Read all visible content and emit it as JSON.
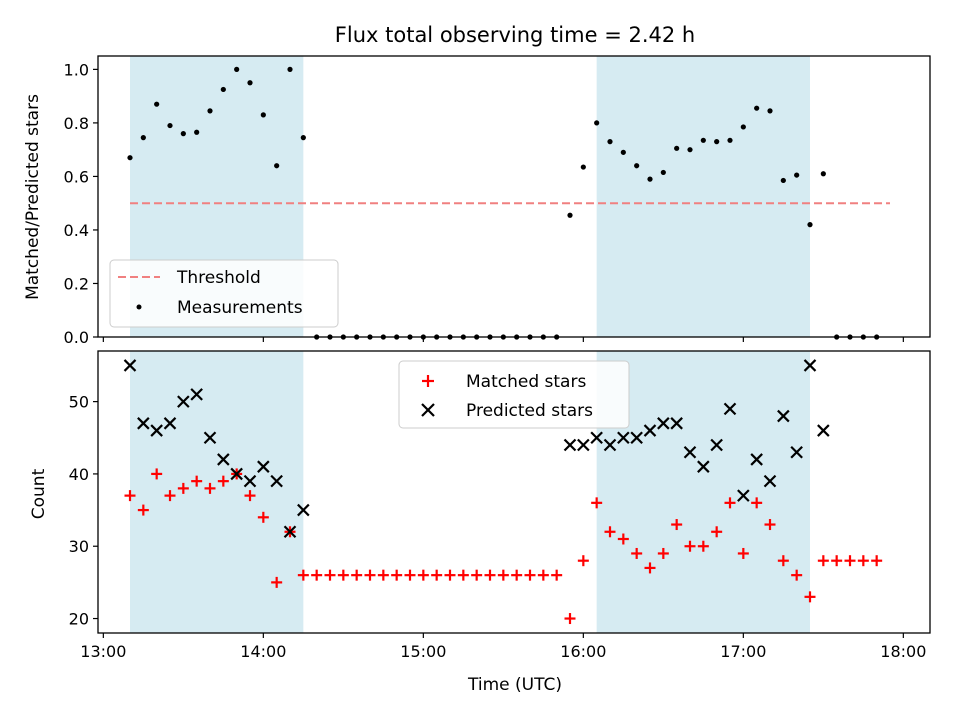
{
  "chart_data": [
    {
      "type": "scatter",
      "title": "Flux total observing time = 2.42 h",
      "xlabel": "",
      "ylabel": "Matched/Predicted stars",
      "xlim": [
        "12:58",
        "18:10"
      ],
      "ylim": [
        0,
        1.05
      ],
      "xticks": [
        "13:00",
        "14:00",
        "15:00",
        "16:00",
        "17:00",
        "18:00"
      ],
      "yticks": [
        "0.0",
        "0.2",
        "0.4",
        "0.6",
        "0.8",
        "1.0"
      ],
      "grid": false,
      "legend": "lower-left",
      "shaded_intervals": [
        [
          "13:10",
          "14:15"
        ],
        [
          "16:05",
          "17:25"
        ]
      ],
      "series": [
        {
          "name": "Threshold",
          "style": "dashed-line",
          "color": "#f08080",
          "points": [
            [
              "13:10",
              0.5
            ],
            [
              "17:55",
              0.5
            ]
          ]
        },
        {
          "name": "Measurements",
          "style": "dot",
          "color": "#000000",
          "points": [
            [
              "13:10",
              0.67
            ],
            [
              "13:15",
              0.745
            ],
            [
              "13:20",
              0.87
            ],
            [
              "13:25",
              0.79
            ],
            [
              "13:30",
              0.76
            ],
            [
              "13:35",
              0.765
            ],
            [
              "13:40",
              0.845
            ],
            [
              "13:45",
              0.925
            ],
            [
              "13:50",
              1.0
            ],
            [
              "13:55",
              0.95
            ],
            [
              "14:00",
              0.83
            ],
            [
              "14:05",
              0.64
            ],
            [
              "14:10",
              1.0
            ],
            [
              "14:15",
              0.745
            ],
            [
              "14:20",
              0.0
            ],
            [
              "14:25",
              0.0
            ],
            [
              "14:30",
              0.0
            ],
            [
              "14:35",
              0.0
            ],
            [
              "14:40",
              0.0
            ],
            [
              "14:45",
              0.0
            ],
            [
              "14:50",
              0.0
            ],
            [
              "14:55",
              0.0
            ],
            [
              "15:00",
              0.0
            ],
            [
              "15:05",
              0.0
            ],
            [
              "15:10",
              0.0
            ],
            [
              "15:15",
              0.0
            ],
            [
              "15:20",
              0.0
            ],
            [
              "15:25",
              0.0
            ],
            [
              "15:30",
              0.0
            ],
            [
              "15:35",
              0.0
            ],
            [
              "15:40",
              0.0
            ],
            [
              "15:45",
              0.0
            ],
            [
              "15:50",
              0.0
            ],
            [
              "15:55",
              0.455
            ],
            [
              "16:00",
              0.635
            ],
            [
              "16:05",
              0.8
            ],
            [
              "16:10",
              0.73
            ],
            [
              "16:15",
              0.69
            ],
            [
              "16:20",
              0.64
            ],
            [
              "16:25",
              0.59
            ],
            [
              "16:30",
              0.615
            ],
            [
              "16:35",
              0.705
            ],
            [
              "16:40",
              0.7
            ],
            [
              "16:45",
              0.735
            ],
            [
              "16:50",
              0.73
            ],
            [
              "16:55",
              0.735
            ],
            [
              "17:00",
              0.785
            ],
            [
              "17:05",
              0.855
            ],
            [
              "17:10",
              0.845
            ],
            [
              "17:15",
              0.585
            ],
            [
              "17:20",
              0.605
            ],
            [
              "17:25",
              0.42
            ],
            [
              "17:30",
              0.61
            ],
            [
              "17:35",
              0.0
            ],
            [
              "17:40",
              0.0
            ],
            [
              "17:45",
              0.0
            ],
            [
              "17:50",
              0.0
            ]
          ]
        }
      ]
    },
    {
      "type": "scatter",
      "title": "",
      "xlabel": "Time (UTC)",
      "ylabel": "Count",
      "xlim": [
        "12:58",
        "18:10"
      ],
      "ylim": [
        18,
        57
      ],
      "xticks": [
        "13:00",
        "14:00",
        "15:00",
        "16:00",
        "17:00",
        "18:00"
      ],
      "yticks": [
        "20",
        "30",
        "40",
        "50"
      ],
      "grid": false,
      "legend": "top-center",
      "shaded_intervals": [
        [
          "13:10",
          "14:15"
        ],
        [
          "16:05",
          "17:25"
        ]
      ],
      "series": [
        {
          "name": "Matched stars",
          "style": "plus",
          "color": "#ff0000",
          "points": [
            [
              "13:10",
              37
            ],
            [
              "13:15",
              35
            ],
            [
              "13:20",
              40
            ],
            [
              "13:25",
              37
            ],
            [
              "13:30",
              38
            ],
            [
              "13:35",
              39
            ],
            [
              "13:40",
              38
            ],
            [
              "13:45",
              39
            ],
            [
              "13:50",
              40
            ],
            [
              "13:55",
              37
            ],
            [
              "14:00",
              34
            ],
            [
              "14:05",
              25
            ],
            [
              "14:10",
              32
            ],
            [
              "14:15",
              26
            ],
            [
              "14:20",
              26
            ],
            [
              "14:25",
              26
            ],
            [
              "14:30",
              26
            ],
            [
              "14:35",
              26
            ],
            [
              "14:40",
              26
            ],
            [
              "14:45",
              26
            ],
            [
              "14:50",
              26
            ],
            [
              "14:55",
              26
            ],
            [
              "15:00",
              26
            ],
            [
              "15:05",
              26
            ],
            [
              "15:10",
              26
            ],
            [
              "15:15",
              26
            ],
            [
              "15:20",
              26
            ],
            [
              "15:25",
              26
            ],
            [
              "15:30",
              26
            ],
            [
              "15:35",
              26
            ],
            [
              "15:40",
              26
            ],
            [
              "15:45",
              26
            ],
            [
              "15:50",
              26
            ],
            [
              "15:55",
              20
            ],
            [
              "16:00",
              28
            ],
            [
              "16:05",
              36
            ],
            [
              "16:10",
              32
            ],
            [
              "16:15",
              31
            ],
            [
              "16:20",
              29
            ],
            [
              "16:25",
              27
            ],
            [
              "16:30",
              29
            ],
            [
              "16:35",
              33
            ],
            [
              "16:40",
              30
            ],
            [
              "16:45",
              30
            ],
            [
              "16:50",
              32
            ],
            [
              "16:55",
              36
            ],
            [
              "17:00",
              29
            ],
            [
              "17:05",
              36
            ],
            [
              "17:10",
              33
            ],
            [
              "17:15",
              28
            ],
            [
              "17:20",
              26
            ],
            [
              "17:25",
              23
            ],
            [
              "17:30",
              28
            ],
            [
              "17:35",
              28
            ],
            [
              "17:40",
              28
            ],
            [
              "17:45",
              28
            ],
            [
              "17:50",
              28
            ]
          ]
        },
        {
          "name": "Predicted stars",
          "style": "x",
          "color": "#000000",
          "points": [
            [
              "13:10",
              55
            ],
            [
              "13:15",
              47
            ],
            [
              "13:20",
              46
            ],
            [
              "13:25",
              47
            ],
            [
              "13:30",
              50
            ],
            [
              "13:35",
              51
            ],
            [
              "13:40",
              45
            ],
            [
              "13:45",
              42
            ],
            [
              "13:50",
              40
            ],
            [
              "13:55",
              39
            ],
            [
              "14:00",
              41
            ],
            [
              "14:05",
              39
            ],
            [
              "14:10",
              32
            ],
            [
              "14:15",
              35
            ],
            [
              "15:55",
              44
            ],
            [
              "16:00",
              44
            ],
            [
              "16:05",
              45
            ],
            [
              "16:10",
              44
            ],
            [
              "16:15",
              45
            ],
            [
              "16:20",
              45
            ],
            [
              "16:25",
              46
            ],
            [
              "16:30",
              47
            ],
            [
              "16:35",
              47
            ],
            [
              "16:40",
              43
            ],
            [
              "16:45",
              41
            ],
            [
              "16:50",
              44
            ],
            [
              "16:55",
              49
            ],
            [
              "17:00",
              37
            ],
            [
              "17:05",
              42
            ],
            [
              "17:10",
              39
            ],
            [
              "17:15",
              48
            ],
            [
              "17:20",
              43
            ],
            [
              "17:25",
              55
            ],
            [
              "17:30",
              46
            ]
          ]
        }
      ]
    }
  ]
}
